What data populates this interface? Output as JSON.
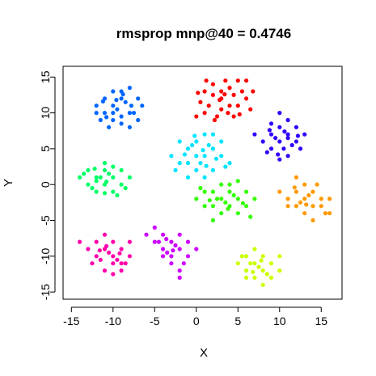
{
  "chart_data": {
    "type": "scatter",
    "title": "rmsprop mnp@40 = 0.4746",
    "xlabel": "X",
    "ylabel": "Y",
    "xlim": [
      -16,
      17.5
    ],
    "ylim": [
      -16,
      16.5
    ],
    "xticks": [
      -15,
      -10,
      -5,
      0,
      5,
      10,
      15
    ],
    "yticks": [
      -15,
      -10,
      -5,
      0,
      5,
      10,
      15
    ],
    "xtick_labels": [
      "-15",
      "-10",
      "-5",
      "0",
      "5",
      "10",
      "15"
    ],
    "ytick_labels": [
      "-15",
      "-10",
      "-5",
      "0",
      "5",
      "10",
      "15"
    ],
    "grid": false,
    "legend": "none",
    "series": [
      {
        "color": "#ff0000",
        "values": [
          [
            3,
            12
          ],
          [
            4,
            13.5
          ],
          [
            5,
            14.5
          ],
          [
            2,
            14
          ],
          [
            1,
            13
          ],
          [
            3,
            10.5
          ],
          [
            5,
            11
          ],
          [
            6,
            12
          ],
          [
            0.5,
            11.5
          ],
          [
            2.5,
            9.5
          ],
          [
            4.5,
            9.5
          ],
          [
            1.5,
            11
          ],
          [
            3.5,
            14.5
          ],
          [
            6.5,
            10.5
          ],
          [
            0,
            9.5
          ],
          [
            5.5,
            13
          ],
          [
            2,
            12.5
          ],
          [
            4,
            11
          ],
          [
            3,
            13
          ],
          [
            1,
            10
          ],
          [
            6,
            14.5
          ],
          [
            4.5,
            12.5
          ],
          [
            2.8,
            11.8
          ],
          [
            3.8,
            10
          ],
          [
            1.2,
            14.5
          ],
          [
            5.2,
            9.8
          ],
          [
            0.2,
            12.8
          ],
          [
            6.8,
            13
          ],
          [
            2.2,
            9
          ],
          [
            3.4,
            12.6
          ]
        ]
      },
      {
        "color": "#0066ff",
        "values": [
          [
            -10,
            11
          ],
          [
            -9,
            12
          ],
          [
            -8,
            10
          ],
          [
            -11,
            10
          ],
          [
            -10,
            9
          ],
          [
            -9,
            13
          ],
          [
            -8,
            13.5
          ],
          [
            -7,
            12
          ],
          [
            -11,
            12
          ],
          [
            -12,
            11
          ],
          [
            -9.5,
            10.5
          ],
          [
            -8.5,
            11.5
          ],
          [
            -10.5,
            8
          ],
          [
            -7.5,
            10
          ],
          [
            -9,
            8.5
          ],
          [
            -11.5,
            9
          ],
          [
            -8,
            8
          ],
          [
            -10,
            13
          ],
          [
            -6.5,
            11
          ],
          [
            -12,
            10
          ],
          [
            -7,
            9
          ],
          [
            -9,
            9.5
          ],
          [
            -10,
            10
          ],
          [
            -8.8,
            12.6
          ],
          [
            -11.2,
            11.6
          ],
          [
            -7.8,
            11
          ],
          [
            -9.6,
            11.8
          ],
          [
            -10.8,
            9.4
          ]
        ]
      },
      {
        "color": "#3300ff",
        "values": [
          [
            10,
            6
          ],
          [
            11,
            7
          ],
          [
            9,
            5
          ],
          [
            12,
            6
          ],
          [
            10,
            8
          ],
          [
            11,
            4
          ],
          [
            9,
            7
          ],
          [
            8,
            6
          ],
          [
            10,
            3.5
          ],
          [
            12,
            8
          ],
          [
            11,
            9
          ],
          [
            9,
            8.5
          ],
          [
            13,
            7
          ],
          [
            10.5,
            5
          ],
          [
            8.5,
            4.5
          ],
          [
            11.5,
            5.5
          ],
          [
            9.5,
            6.5
          ],
          [
            12.5,
            5
          ],
          [
            10,
            10
          ],
          [
            7,
            7
          ],
          [
            11,
            6.5
          ],
          [
            9.8,
            4.2
          ],
          [
            12.2,
            6.8
          ],
          [
            8.8,
            7.6
          ],
          [
            10.6,
            7.4
          ]
        ]
      },
      {
        "color": "#00e5ff",
        "values": [
          [
            -1,
            5
          ],
          [
            0,
            6
          ],
          [
            1,
            4
          ],
          [
            2,
            5
          ],
          [
            -2,
            3
          ],
          [
            0,
            2
          ],
          [
            1,
            7
          ],
          [
            -1,
            3
          ],
          [
            3,
            4
          ],
          [
            2,
            2
          ],
          [
            -3,
            4
          ],
          [
            0,
            4
          ],
          [
            1,
            1
          ],
          [
            -2,
            6
          ],
          [
            3,
            6
          ],
          [
            4,
            3
          ],
          [
            -1,
            1
          ],
          [
            2,
            7
          ],
          [
            0.5,
            3
          ],
          [
            -0.5,
            5.5
          ],
          [
            1.5,
            5.5
          ],
          [
            -2.5,
            2
          ],
          [
            3.5,
            2.5
          ],
          [
            0.8,
            4.8
          ],
          [
            -1.4,
            4.2
          ],
          [
            2.4,
            3.6
          ],
          [
            1.2,
            2.6
          ],
          [
            -0.2,
            6.8
          ]
        ]
      },
      {
        "color": "#00ff66",
        "values": [
          [
            -12,
            1
          ],
          [
            -11,
            0
          ],
          [
            -13,
            2
          ],
          [
            -10,
            1
          ],
          [
            -12,
            -1
          ],
          [
            -11,
            2
          ],
          [
            -9,
            0
          ],
          [
            -13,
            0
          ],
          [
            -10,
            -1
          ],
          [
            -14,
            1
          ],
          [
            -11,
            3
          ],
          [
            -9,
            2
          ],
          [
            -12,
            0.5
          ],
          [
            -10.5,
            1.5
          ],
          [
            -8,
            1
          ],
          [
            -12.5,
            -0.5
          ],
          [
            -11.5,
            1
          ],
          [
            -9.5,
            -1.5
          ],
          [
            -13.5,
            1.5
          ],
          [
            -10,
            2.5
          ],
          [
            -8.5,
            -0.5
          ],
          [
            -11,
            -1.2
          ],
          [
            -12.2,
            2.2
          ],
          [
            -10.8,
            0.4
          ]
        ]
      },
      {
        "color": "#33ff00",
        "values": [
          [
            3,
            -2
          ],
          [
            4,
            -3
          ],
          [
            2,
            -1
          ],
          [
            5,
            -2
          ],
          [
            1,
            -3
          ],
          [
            4,
            -1
          ],
          [
            3,
            -4
          ],
          [
            6,
            -3
          ],
          [
            2,
            -3
          ],
          [
            5,
            -4
          ],
          [
            0,
            -2
          ],
          [
            4,
            0
          ],
          [
            6,
            -1
          ],
          [
            3,
            0
          ],
          [
            1,
            -1
          ],
          [
            7,
            -2
          ],
          [
            2,
            -5
          ],
          [
            5,
            0.5
          ],
          [
            3.5,
            -2.5
          ],
          [
            4.5,
            -1.5
          ],
          [
            2.5,
            -2
          ],
          [
            0.5,
            -0.5
          ],
          [
            6.5,
            -4.5
          ],
          [
            3.8,
            -3.4
          ],
          [
            1.6,
            -2.2
          ],
          [
            5.6,
            -2.6
          ]
        ]
      },
      {
        "color": "#ff9900",
        "values": [
          [
            13,
            -2
          ],
          [
            14,
            -1
          ],
          [
            12,
            -3
          ],
          [
            15,
            -2
          ],
          [
            13,
            -4
          ],
          [
            12,
            -1
          ],
          [
            14,
            -3
          ],
          [
            11,
            -2
          ],
          [
            15,
            -3
          ],
          [
            13,
            0
          ],
          [
            16,
            -2
          ],
          [
            12,
            1
          ],
          [
            14,
            -5
          ],
          [
            11,
            -3
          ],
          [
            13.5,
            -1.5
          ],
          [
            12.5,
            -2.5
          ],
          [
            15.5,
            -4
          ],
          [
            10,
            -1
          ],
          [
            14.5,
            0
          ],
          [
            16,
            -4
          ],
          [
            13.2,
            -2.8
          ],
          [
            11.8,
            -0.4
          ]
        ]
      },
      {
        "color": "#ff00aa",
        "values": [
          [
            -10,
            -10
          ],
          [
            -11,
            -9
          ],
          [
            -9,
            -11
          ],
          [
            -12,
            -10
          ],
          [
            -10,
            -8
          ],
          [
            -11,
            -12
          ],
          [
            -9,
            -9
          ],
          [
            -8,
            -10
          ],
          [
            -12,
            -8
          ],
          [
            -13,
            -9
          ],
          [
            -10,
            -11
          ],
          [
            -11,
            -7
          ],
          [
            -9,
            -12
          ],
          [
            -14,
            -8
          ],
          [
            -8,
            -8
          ],
          [
            -10.5,
            -9.5
          ],
          [
            -11.5,
            -10.5
          ],
          [
            -9.5,
            -10.5
          ],
          [
            -12.5,
            -11
          ],
          [
            -8.5,
            -11
          ],
          [
            -10,
            -12.5
          ],
          [
            -10.8,
            -8.6
          ],
          [
            -9.2,
            -9.6
          ],
          [
            -11.6,
            -9.2
          ]
        ]
      },
      {
        "color": "#cc00ff",
        "values": [
          [
            -3,
            -8
          ],
          [
            -2,
            -9
          ],
          [
            -4,
            -7
          ],
          [
            -1,
            -10
          ],
          [
            -3,
            -10
          ],
          [
            -2,
            -7
          ],
          [
            -5,
            -8
          ],
          [
            -4,
            -9
          ],
          [
            -1,
            -8
          ],
          [
            -3,
            -11
          ],
          [
            -2,
            -12
          ],
          [
            0,
            -9
          ],
          [
            -5,
            -6
          ],
          [
            -4,
            -10
          ],
          [
            -2.5,
            -8.5
          ],
          [
            -3.5,
            -9.5
          ],
          [
            -1.5,
            -11
          ],
          [
            -6,
            -7
          ],
          [
            -2,
            -13
          ],
          [
            -4.5,
            -8
          ],
          [
            -2.8,
            -9.2
          ],
          [
            -3.6,
            -7.6
          ]
        ]
      },
      {
        "color": "#ccff00",
        "values": [
          [
            7,
            -11
          ],
          [
            8,
            -12
          ],
          [
            6,
            -10
          ],
          [
            9,
            -11
          ],
          [
            7,
            -13
          ],
          [
            8,
            -10
          ],
          [
            6,
            -12
          ],
          [
            10,
            -10
          ],
          [
            5,
            -11
          ],
          [
            7,
            -9
          ],
          [
            9,
            -13
          ],
          [
            8,
            -14
          ],
          [
            6,
            -13
          ],
          [
            7.5,
            -11.5
          ],
          [
            8.5,
            -12.5
          ],
          [
            6.5,
            -11
          ],
          [
            10,
            -12
          ],
          [
            5.5,
            -10
          ],
          [
            7.8,
            -10.6
          ],
          [
            6.8,
            -12.2
          ]
        ]
      }
    ]
  }
}
